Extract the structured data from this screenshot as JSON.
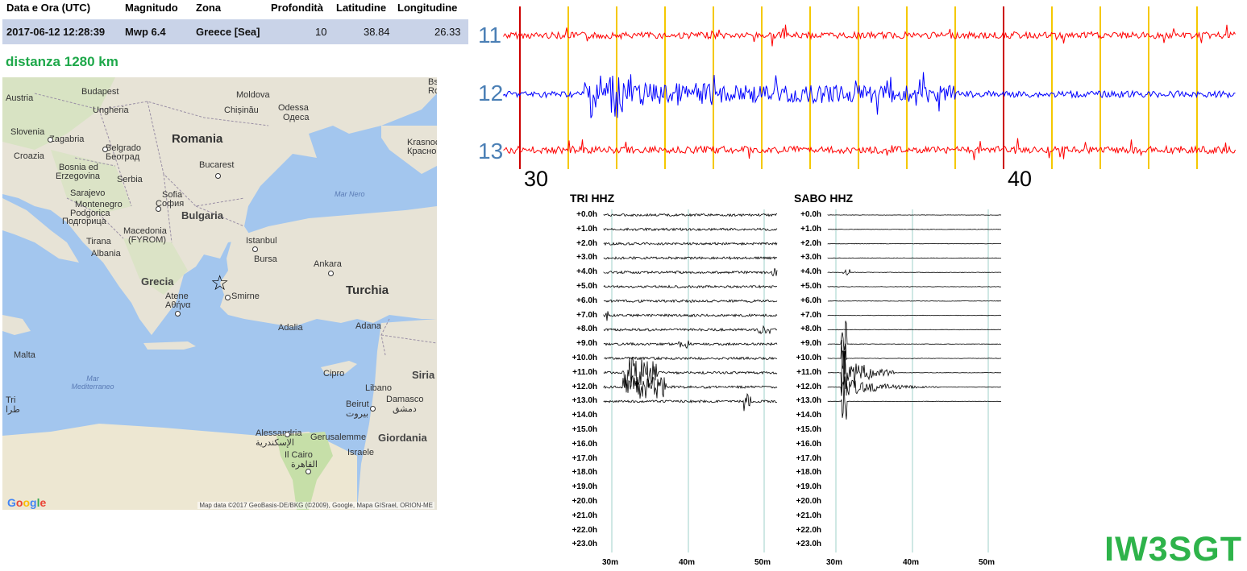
{
  "event_table": {
    "headers": [
      "Data e Ora (UTC)",
      "Magnitudo",
      "Zona",
      "Profondità",
      "Latitudine",
      "Longitudine"
    ],
    "row": {
      "datetime": "2017-06-12 12:28:39",
      "magnitude": "Mwp 6.4",
      "zone": "Greece [Sea]",
      "depth": "10",
      "latitude": "38.84",
      "longitude": "26.33"
    }
  },
  "distance_text": "distanza 1280 km",
  "map": {
    "labels": {
      "austria": "Austria",
      "budapest": "Budapest",
      "ungheria": "Ungheria",
      "chisinau": "Chișinău",
      "moldova": "Moldova",
      "odessa": "Odessa",
      "odessa_cyr": "Одеса",
      "slovenia": "Slovenia",
      "zagabria": "Zagabria",
      "romania": "Romania",
      "croazia": "Croazia",
      "belgrado": "Belgrado",
      "belgrado_cyr": "Београд",
      "bosnia": "Bosnia ed",
      "erzegovina": "Erzegovina",
      "serbia": "Serbia",
      "bucarest": "Bucarest",
      "krasnodar": "Krasnoc",
      "krasnodar_cyr": "Красно",
      "sarajevo": "Sarajevo",
      "montenegro": "Montenegro",
      "podgorica": "Podgorica",
      "podgorica_cyr": "Подгорица",
      "sofia": "Sofia",
      "sofia_cyr": "София",
      "bulgaria": "Bulgaria",
      "mar_nero": "Mar Nero",
      "macedonia": "Macedonia",
      "fyrom": "(FYROM)",
      "tirana": "Tirana",
      "albania": "Albania",
      "istanbul": "Istanbul",
      "bursa": "Bursa",
      "ankara": "Ankara",
      "grecia": "Grecia",
      "turchia": "Turchia",
      "atene": "Atene",
      "atene_gr": "Αθήνα",
      "smirne": "Smirne",
      "adalia": "Adalia",
      "adana": "Adana",
      "malta": "Malta",
      "mar_mediterraneo_1": "Mar",
      "mar_mediterraneo_2": "Mediterraneo",
      "cipro": "Cipro",
      "siria": "Siria",
      "libano": "Libano",
      "beirut": "Beirut",
      "beirut_ar": "بيروت",
      "damasco": "Damasco",
      "damasco_ar": "دمشق",
      "alessandria": "Alessandria",
      "alessandria_ar": "الإسكندرية",
      "gerusalemme": "Gerusalemme",
      "giordania": "Giordania",
      "israele": "Israele",
      "il_cairo": "Il Cairo",
      "il_cairo_ar": "القاهرة",
      "bs": "Bs",
      "ro": "Ro",
      "tripoli_1": "Tri",
      "tripoli_2": "طرا"
    },
    "attribution": "Map data ©2017 GeoBasis-DE/BKG (©2009), Google, Mapa GISrael, ORION-ME",
    "logo": [
      "G",
      "o",
      "o",
      "g",
      "l",
      "e"
    ],
    "colors": {
      "sea": "#a3c6ee",
      "land": "#e7e3d6",
      "green": "#c6dfa8"
    }
  },
  "strip": {
    "channels": [
      "11",
      "12",
      "13"
    ],
    "time_labels": [
      "30",
      "40"
    ],
    "colors": {
      "ch11": "#ff0000",
      "ch12": "#0000ff",
      "ch13": "#ff0000",
      "marker_red": "#cc0000",
      "marker_yellow": "#f5c800"
    }
  },
  "helicorders": [
    {
      "title": "TRI HHZ",
      "hours": [
        "+0.0h",
        "+1.0h",
        "+2.0h",
        "+3.0h",
        "+4.0h",
        "+5.0h",
        "+6.0h",
        "+7.0h",
        "+8.0h",
        "+9.0h",
        "+10.0h",
        "+11.0h",
        "+12.0h",
        "+13.0h",
        "+14.0h",
        "+15.0h",
        "+16.0h",
        "+17.0h",
        "+18.0h",
        "+19.0h",
        "+20.0h",
        "+21.0h",
        "+22.0h",
        "+23.0h"
      ],
      "minute_ticks": [
        "30m",
        "40m",
        "50m"
      ],
      "active_rows": 14
    },
    {
      "title": "SABO HHZ",
      "hours": [
        "+0.0h",
        "+1.0h",
        "+2.0h",
        "+3.0h",
        "+4.0h",
        "+5.0h",
        "+6.0h",
        "+7.0h",
        "+8.0h",
        "+9.0h",
        "+10.0h",
        "+11.0h",
        "+12.0h",
        "+13.0h",
        "+14.0h",
        "+15.0h",
        "+16.0h",
        "+17.0h",
        "+18.0h",
        "+19.0h",
        "+20.0h",
        "+21.0h",
        "+22.0h",
        "+23.0h"
      ],
      "minute_ticks": [
        "30m",
        "40m",
        "50m"
      ],
      "active_rows": 14
    }
  ],
  "callsign": "IW3SGT"
}
